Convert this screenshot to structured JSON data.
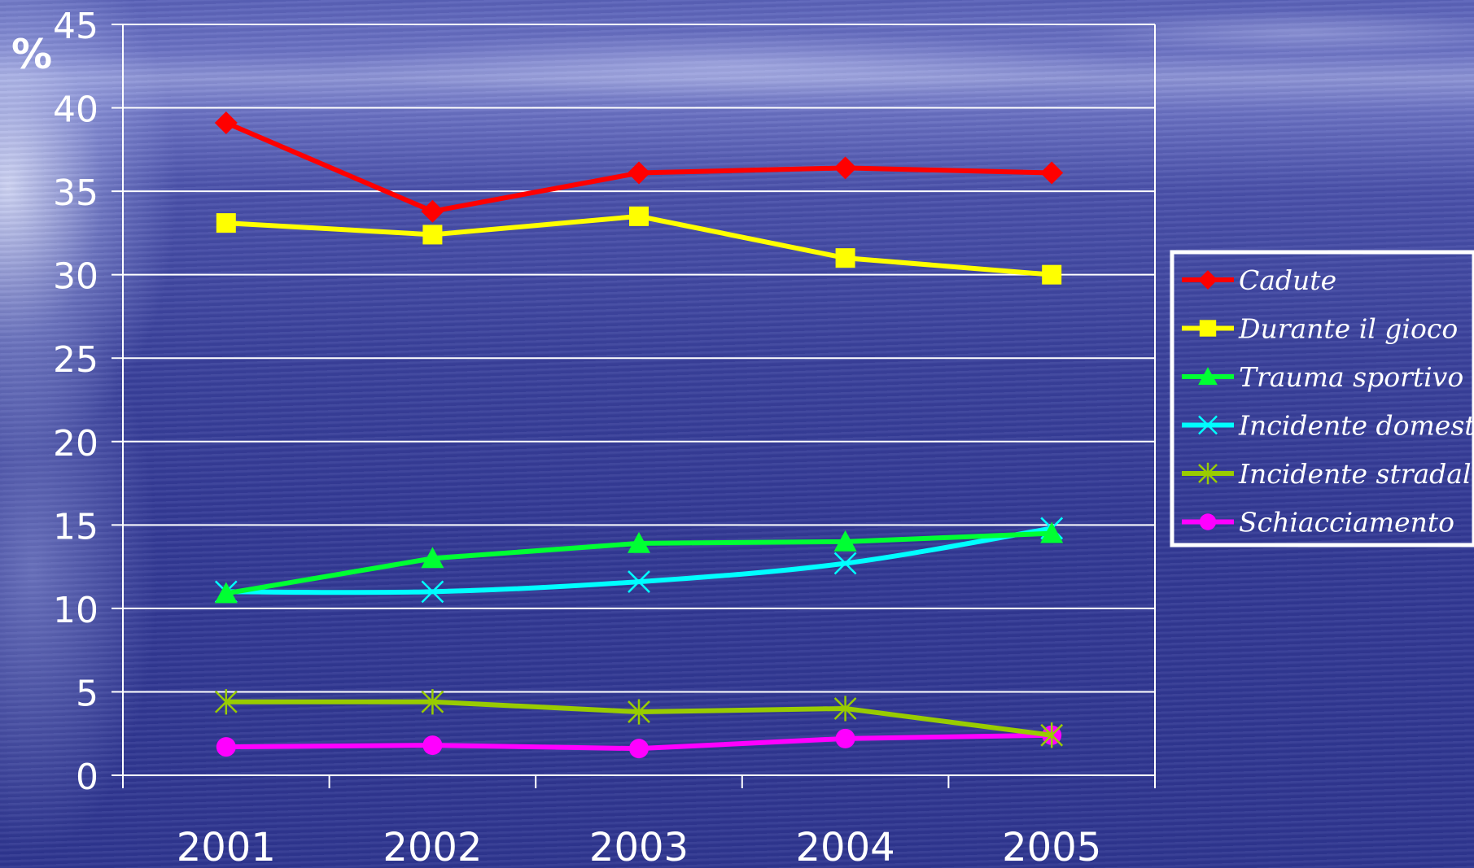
{
  "chart_data": {
    "type": "line",
    "unit_label": "%",
    "x": [
      "2001",
      "2002",
      "2003",
      "2004",
      "2005"
    ],
    "y_ticks": [
      "0",
      "5",
      "10",
      "15",
      "20",
      "25",
      "30",
      "35",
      "40",
      "45"
    ],
    "ylim": [
      0,
      45
    ],
    "grid": true,
    "legend_position": "right",
    "series": [
      {
        "name": "Cadute",
        "values": [
          39.1,
          33.8,
          36.1,
          36.4,
          36.1
        ],
        "color": "#ff0000",
        "marker": "diamond"
      },
      {
        "name": "Durante il gioco",
        "values": [
          33.1,
          32.4,
          33.5,
          31.0,
          30.0
        ],
        "color": "#ffff00",
        "marker": "square"
      },
      {
        "name": "Trauma sportivo",
        "values": [
          10.9,
          13.0,
          13.9,
          14.0,
          14.5
        ],
        "color": "#00ff33",
        "marker": "triangle"
      },
      {
        "name": "Incidente domestico",
        "values": [
          11.0,
          11.0,
          11.6,
          12.7,
          14.8
        ],
        "color": "#00ffff",
        "marker": "x"
      },
      {
        "name": "Incidente stradale",
        "values": [
          4.4,
          4.4,
          3.8,
          4.0,
          2.4
        ],
        "color": "#99cc00",
        "marker": "star"
      },
      {
        "name": "Schiacciamento",
        "values": [
          1.7,
          1.8,
          1.6,
          2.2,
          2.4
        ],
        "color": "#ff00ff",
        "marker": "circle"
      }
    ]
  }
}
